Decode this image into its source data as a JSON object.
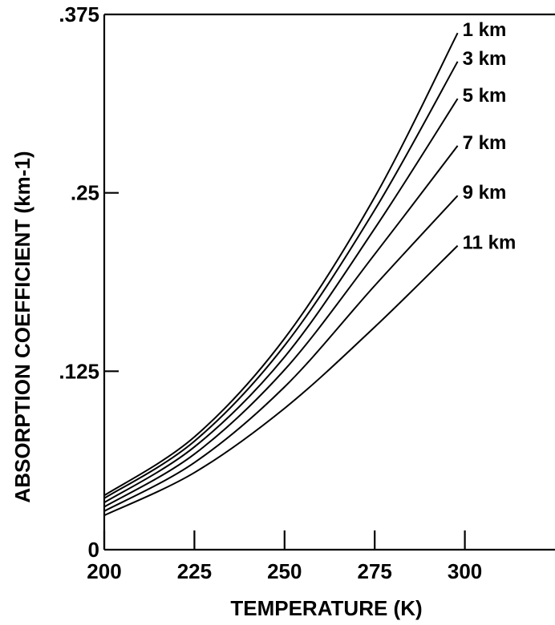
{
  "chart_data": {
    "type": "line",
    "title": "",
    "xlabel": "TEMPERATURE (K)",
    "ylabel": "ABSORPTION COEFFICIENT (km-1)",
    "xlim": [
      200,
      325
    ],
    "ylim": [
      0,
      0.375
    ],
    "x_ticks": [
      200,
      225,
      250,
      275,
      300
    ],
    "x_tick_labels": [
      "200",
      "225",
      "250",
      "275",
      "300"
    ],
    "y_ticks": [
      0,
      0.125,
      0.25,
      0.375
    ],
    "y_tick_labels": [
      "0",
      ".125",
      ".25",
      ".375"
    ],
    "grid": false,
    "legend": "none",
    "series": [
      {
        "name": "1 km",
        "x": [
          200,
          225,
          250,
          275,
          298
        ],
        "y": [
          0.038,
          0.079,
          0.148,
          0.247,
          0.362
        ]
      },
      {
        "name": "3 km",
        "x": [
          200,
          225,
          250,
          275,
          298
        ],
        "y": [
          0.036,
          0.076,
          0.143,
          0.238,
          0.342
        ]
      },
      {
        "name": "5 km",
        "x": [
          200,
          225,
          250,
          275,
          298
        ],
        "y": [
          0.033,
          0.072,
          0.135,
          0.225,
          0.316
        ]
      },
      {
        "name": "7 km",
        "x": [
          200,
          225,
          250,
          275,
          298
        ],
        "y": [
          0.03,
          0.067,
          0.126,
          0.207,
          0.283
        ]
      },
      {
        "name": "9 km",
        "x": [
          200,
          225,
          250,
          275,
          298
        ],
        "y": [
          0.027,
          0.061,
          0.114,
          0.185,
          0.248
        ]
      },
      {
        "name": "11 km",
        "x": [
          200,
          225,
          250,
          275,
          298
        ],
        "y": [
          0.024,
          0.054,
          0.099,
          0.156,
          0.213
        ]
      }
    ]
  }
}
